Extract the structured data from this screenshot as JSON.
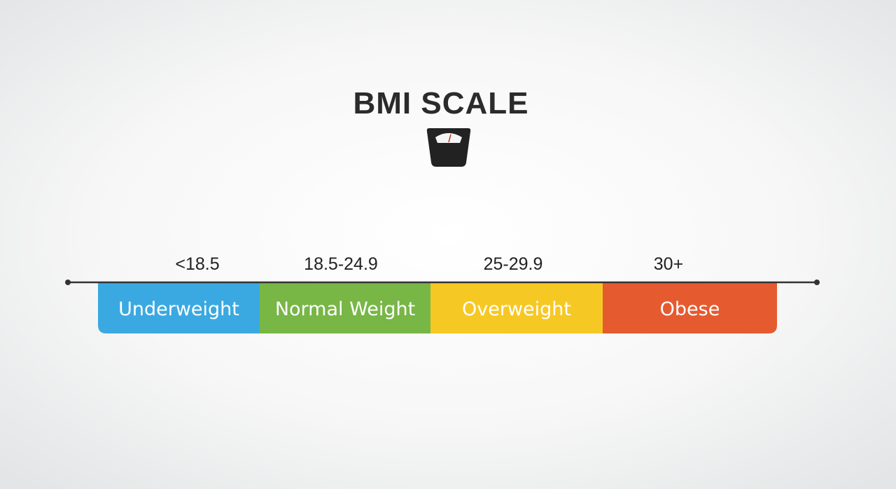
{
  "title": "BMI SCALE",
  "categories": [
    {
      "range": "<18.5",
      "label": "Underweight",
      "color": "#3aa9e1"
    },
    {
      "range": "18.5-24.9",
      "label": "Normal Weight",
      "color": "#78b646"
    },
    {
      "range": "25-29.9",
      "label": "Overweight",
      "color": "#f6c823"
    },
    {
      "range": "30+",
      "label": "Obese",
      "color": "#e65a2f"
    }
  ]
}
